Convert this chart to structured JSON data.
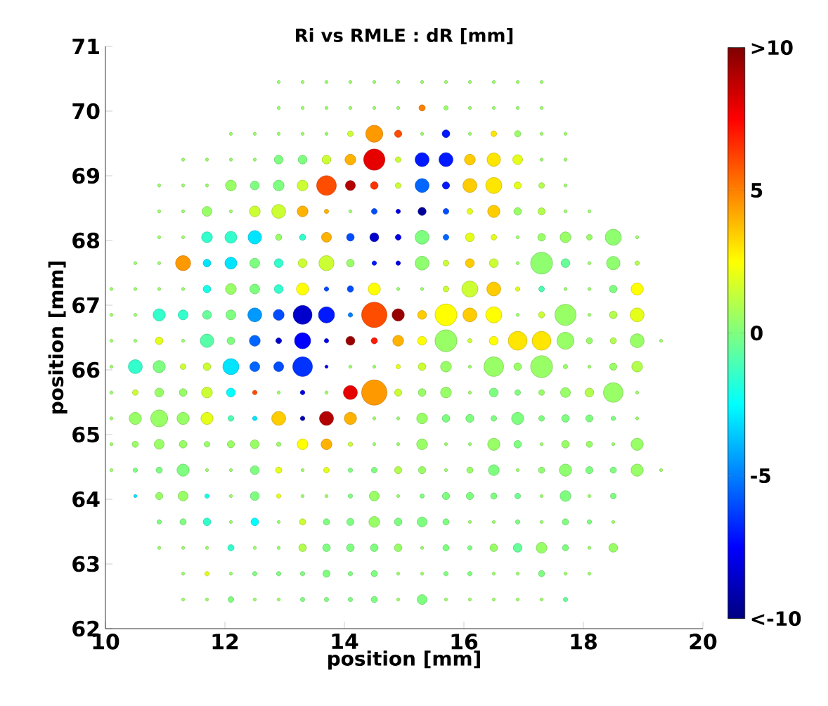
{
  "chart_data": {
    "type": "bubble",
    "title": "Ri vs RMLE : dR [mm]",
    "xlabel": "position [mm]",
    "ylabel": "position [mm]",
    "xlim": [
      10,
      20
    ],
    "xticks": [
      10,
      12,
      14,
      16,
      18,
      20
    ],
    "ylim": [
      62,
      71
    ],
    "yticks": [
      62,
      63,
      64,
      65,
      66,
      67,
      68,
      69,
      70,
      71
    ],
    "clim": [
      -10,
      10
    ],
    "cticks": [
      {
        "value": -10,
        "label": "<-10"
      },
      -5,
      0,
      5,
      {
        "value": 10,
        "label": ">10"
      }
    ],
    "x": [
      12.9,
      13.3,
      13.7,
      14.1,
      14.5,
      14.9,
      15.3,
      15.7,
      16.1,
      16.5,
      16.9,
      17.3,
      12.9,
      13.3,
      13.7,
      14.1,
      14.5,
      14.9,
      15.3,
      15.7,
      16.1,
      16.5,
      16.9,
      17.3,
      12.1,
      12.5,
      12.9,
      13.3,
      13.7,
      14.1,
      14.5,
      14.9,
      15.3,
      15.7,
      16.1,
      16.5,
      16.9,
      17.3,
      17.7,
      11.3,
      11.7,
      12.1,
      12.5,
      12.9,
      13.3,
      13.7,
      14.1,
      14.5,
      14.9,
      15.3,
      15.7,
      16.1,
      16.5,
      16.9,
      17.3,
      17.7,
      10.9,
      11.3,
      11.7,
      12.1,
      12.5,
      12.9,
      13.3,
      13.7,
      14.1,
      14.5,
      14.9,
      15.3,
      15.7,
      16.1,
      16.5,
      16.9,
      17.3,
      17.7,
      10.9,
      11.3,
      11.7,
      12.1,
      12.5,
      12.9,
      13.3,
      13.7,
      14.1,
      14.5,
      14.9,
      15.3,
      15.7,
      16.1,
      16.5,
      16.9,
      17.3,
      17.7,
      18.1,
      10.9,
      11.3,
      11.7,
      12.1,
      12.5,
      12.9,
      13.3,
      13.7,
      14.1,
      14.5,
      14.9,
      15.3,
      15.7,
      16.1,
      16.5,
      16.9,
      17.3,
      17.7,
      18.1,
      18.5,
      18.9,
      10.5,
      10.9,
      11.3,
      11.7,
      12.1,
      12.5,
      12.9,
      13.3,
      13.7,
      14.1,
      14.5,
      14.9,
      15.3,
      15.7,
      16.1,
      16.5,
      16.9,
      17.3,
      17.7,
      18.1,
      18.5,
      18.9,
      10.1,
      10.5,
      10.9,
      11.3,
      11.7,
      12.1,
      12.5,
      12.9,
      13.3,
      13.7,
      14.1,
      14.5,
      14.9,
      15.3,
      15.7,
      16.1,
      16.5,
      16.9,
      17.3,
      17.7,
      18.1,
      18.5,
      18.9,
      10.1,
      10.5,
      10.9,
      11.3,
      11.7,
      12.1,
      12.5,
      12.9,
      13.3,
      13.7,
      14.1,
      14.5,
      14.9,
      15.3,
      15.7,
      16.1,
      16.5,
      16.9,
      17.3,
      17.7,
      18.1,
      18.5,
      18.9,
      10.1,
      10.5,
      10.9,
      11.3,
      11.7,
      12.1,
      12.5,
      12.9,
      13.3,
      13.7,
      14.1,
      14.5,
      14.9,
      15.3,
      15.7,
      16.1,
      16.5,
      16.9,
      17.3,
      17.7,
      18.1,
      18.5,
      18.9,
      19.3,
      10.1,
      10.5,
      10.9,
      11.3,
      11.7,
      12.1,
      12.5,
      12.9,
      13.3,
      13.7,
      14.1,
      14.5,
      14.9,
      15.3,
      15.7,
      16.1,
      16.5,
      16.9,
      17.3,
      17.7,
      18.1,
      18.5,
      18.9,
      10.1,
      10.5,
      10.9,
      11.3,
      11.7,
      12.1,
      12.5,
      12.9,
      13.3,
      13.7,
      14.1,
      14.5,
      14.9,
      15.3,
      15.7,
      16.1,
      16.5,
      16.9,
      17.3,
      17.7,
      18.1,
      18.5,
      18.9,
      10.1,
      10.5,
      10.9,
      11.3,
      11.7,
      12.1,
      12.5,
      12.9,
      13.3,
      13.7,
      14.1,
      14.5,
      14.9,
      15.3,
      15.7,
      16.1,
      16.5,
      16.9,
      17.3,
      17.7,
      18.1,
      18.5,
      18.9,
      10.1,
      10.5,
      10.9,
      11.3,
      11.7,
      12.1,
      12.5,
      12.9,
      13.3,
      13.7,
      14.1,
      14.5,
      14.9,
      15.3,
      15.7,
      16.1,
      16.5,
      16.9,
      17.3,
      17.7,
      18.1,
      18.5,
      18.9,
      10.1,
      10.5,
      10.9,
      11.3,
      11.7,
      12.1,
      12.5,
      12.9,
      13.3,
      13.7,
      14.1,
      14.5,
      14.9,
      15.3,
      15.7,
      16.1,
      16.5,
      16.9,
      17.3,
      17.7,
      18.1,
      18.5,
      18.9,
      19.3,
      10.5,
      10.9,
      11.3,
      11.7,
      12.1,
      12.5,
      12.9,
      13.3,
      13.7,
      14.1,
      14.5,
      14.9,
      15.3,
      15.7,
      16.1,
      16.5,
      16.9,
      17.3,
      17.7,
      18.1,
      18.5,
      10.9,
      11.3,
      11.7,
      12.1,
      12.5,
      12.9,
      13.3,
      13.7,
      14.1,
      14.5,
      14.9,
      15.3,
      15.7,
      16.1,
      16.5,
      16.9,
      17.3,
      17.7,
      18.1,
      18.5,
      10.9,
      11.3,
      11.7,
      12.1,
      12.5,
      12.9,
      13.3,
      13.7,
      14.1,
      14.5,
      14.9,
      15.3,
      15.7,
      16.1,
      16.5,
      16.9,
      17.3,
      17.7,
      18.1,
      18.5,
      11.3,
      11.7,
      12.1,
      12.5,
      12.9,
      13.3,
      13.7,
      14.1,
      14.5,
      14.9,
      15.3,
      15.7,
      16.1,
      16.5,
      16.9,
      17.3,
      17.7,
      18.1,
      11.3,
      11.7,
      12.1,
      12.5,
      12.9,
      13.3,
      13.7,
      14.1,
      14.5,
      14.9,
      15.3,
      15.7,
      16.1,
      16.5,
      16.9,
      17.3,
      17.7
    ],
    "values": [
      70.45,
      70.45,
      70.45,
      70.45,
      70.45,
      70.45,
      70.45,
      70.45,
      70.45,
      70.45,
      70.45,
      70.45,
      70.05,
      70.05,
      70.05,
      70.05,
      70.05,
      70.05,
      70.05,
      70.05,
      70.05,
      70.05,
      70.05,
      70.05,
      69.65,
      69.65,
      69.65,
      69.65,
      69.65,
      69.65,
      69.65,
      69.65,
      69.65,
      69.65,
      69.65,
      69.65,
      69.65,
      69.65,
      69.65,
      69.25,
      69.25,
      69.25,
      69.25,
      69.25,
      69.25,
      69.25,
      69.25,
      69.25,
      69.25,
      69.25,
      69.25,
      69.25,
      69.25,
      69.25,
      69.25,
      69.25,
      68.85,
      68.85,
      68.85,
      68.85,
      68.85,
      68.85,
      68.85,
      68.85,
      68.85,
      68.85,
      68.85,
      68.85,
      68.85,
      68.85,
      68.85,
      68.85,
      68.85,
      68.85,
      68.45,
      68.45,
      68.45,
      68.45,
      68.45,
      68.45,
      68.45,
      68.45,
      68.45,
      68.45,
      68.45,
      68.45,
      68.45,
      68.45,
      68.45,
      68.45,
      68.45,
      68.45,
      68.45,
      68.05,
      68.05,
      68.05,
      68.05,
      68.05,
      68.05,
      68.05,
      68.05,
      68.05,
      68.05,
      68.05,
      68.05,
      68.05,
      68.05,
      68.05,
      68.05,
      68.05,
      68.05,
      68.05,
      68.05,
      68.05,
      67.65,
      67.65,
      67.65,
      67.65,
      67.65,
      67.65,
      67.65,
      67.65,
      67.65,
      67.65,
      67.65,
      67.65,
      67.65,
      67.65,
      67.65,
      67.65,
      67.65,
      67.65,
      67.65,
      67.65,
      67.65,
      67.65,
      67.25,
      67.25,
      67.25,
      67.25,
      67.25,
      67.25,
      67.25,
      67.25,
      67.25,
      67.25,
      67.25,
      67.25,
      67.25,
      67.25,
      67.25,
      67.25,
      67.25,
      67.25,
      67.25,
      67.25,
      67.25,
      67.25,
      67.25,
      66.85,
      66.85,
      66.85,
      66.85,
      66.85,
      66.85,
      66.85,
      66.85,
      66.85,
      66.85,
      66.85,
      66.85,
      66.85,
      66.85,
      66.85,
      66.85,
      66.85,
      66.85,
      66.85,
      66.85,
      66.85,
      66.85,
      66.85,
      66.45,
      66.45,
      66.45,
      66.45,
      66.45,
      66.45,
      66.45,
      66.45,
      66.45,
      66.45,
      66.45,
      66.45,
      66.45,
      66.45,
      66.45,
      66.45,
      66.45,
      66.45,
      66.45,
      66.45,
      66.45,
      66.45,
      66.45,
      66.45,
      66.05,
      66.05,
      66.05,
      66.05,
      66.05,
      66.05,
      66.05,
      66.05,
      66.05,
      66.05,
      66.05,
      66.05,
      66.05,
      66.05,
      66.05,
      66.05,
      66.05,
      66.05,
      66.05,
      66.05,
      66.05,
      66.05,
      66.05,
      65.65,
      65.65,
      65.65,
      65.65,
      65.65,
      65.65,
      65.65,
      65.65,
      65.65,
      65.65,
      65.65,
      65.65,
      65.65,
      65.65,
      65.65,
      65.65,
      65.65,
      65.65,
      65.65,
      65.65,
      65.65,
      65.65,
      65.65,
      65.25,
      65.25,
      65.25,
      65.25,
      65.25,
      65.25,
      65.25,
      65.25,
      65.25,
      65.25,
      65.25,
      65.25,
      65.25,
      65.25,
      65.25,
      65.25,
      65.25,
      65.25,
      65.25,
      65.25,
      65.25,
      65.25,
      65.25,
      64.85,
      64.85,
      64.85,
      64.85,
      64.85,
      64.85,
      64.85,
      64.85,
      64.85,
      64.85,
      64.85,
      64.85,
      64.85,
      64.85,
      64.85,
      64.85,
      64.85,
      64.85,
      64.85,
      64.85,
      64.85,
      64.85,
      64.85,
      64.45,
      64.45,
      64.45,
      64.45,
      64.45,
      64.45,
      64.45,
      64.45,
      64.45,
      64.45,
      64.45,
      64.45,
      64.45,
      64.45,
      64.45,
      64.45,
      64.45,
      64.45,
      64.45,
      64.45,
      64.45,
      64.45,
      64.45,
      64.45,
      64.05,
      64.05,
      64.05,
      64.05,
      64.05,
      64.05,
      64.05,
      64.05,
      64.05,
      64.05,
      64.05,
      64.05,
      64.05,
      64.05,
      64.05,
      64.05,
      64.05,
      64.05,
      64.05,
      64.05,
      64.05,
      63.65,
      63.65,
      63.65,
      63.65,
      63.65,
      63.65,
      63.65,
      63.65,
      63.65,
      63.65,
      63.65,
      63.65,
      63.65,
      63.65,
      63.65,
      63.65,
      63.65,
      63.65,
      63.65,
      63.65,
      63.25,
      63.25,
      63.25,
      63.25,
      63.25,
      63.25,
      63.25,
      63.25,
      63.25,
      63.25,
      63.25,
      63.25,
      63.25,
      63.25,
      63.25,
      63.25,
      63.25,
      63.25,
      63.25,
      63.25,
      62.85,
      62.85,
      62.85,
      62.85,
      62.85,
      62.85,
      62.85,
      62.85,
      62.85,
      62.85,
      62.85,
      62.85,
      62.85,
      62.85,
      62.85,
      62.85,
      62.85,
      62.85,
      62.45,
      62.45,
      62.45,
      62.45,
      62.45,
      62.45,
      62.45,
      62.45,
      62.45,
      62.45,
      62.45,
      62.45,
      62.45,
      62.45,
      62.45,
      62.45,
      62.45
    ],
    "cvalues": [
      0.5,
      0.5,
      0.5,
      0.5,
      0.5,
      0.5,
      0.5,
      0.5,
      0.5,
      0.5,
      0.5,
      0.5,
      0.5,
      0.5,
      0.5,
      0.5,
      0.5,
      0.5,
      5,
      0.5,
      0.5,
      0.5,
      0.5,
      0.5,
      0.5,
      0.5,
      0.5,
      0.5,
      0.5,
      1.5,
      4.5,
      6,
      0.5,
      -7,
      0.5,
      3,
      0.5,
      0.5,
      0.5,
      0.5,
      0.5,
      0.5,
      0.5,
      0,
      0,
      1.5,
      4,
      8,
      1.5,
      -7,
      -7,
      3.5,
      3,
      2,
      0.5,
      0.5,
      0.5,
      0.5,
      0.5,
      0.5,
      0,
      0,
      1.5,
      6,
      9,
      6.5,
      1.5,
      -5.5,
      -7,
      3.5,
      3,
      2,
      1,
      0.5,
      0.5,
      0.5,
      0.5,
      0.5,
      1.5,
      1.5,
      4,
      4,
      0.5,
      -6,
      -8,
      -9.5,
      -6,
      2,
      3.5,
      0.5,
      1,
      0.5,
      0.5,
      0.5,
      0.5,
      -1.5,
      -1.5,
      -3,
      0.5,
      -1.5,
      4,
      -6,
      -8.5,
      -8,
      0,
      -5.5,
      2,
      2,
      0.5,
      0.5,
      0.5,
      0.5,
      0.3,
      0.5,
      0.5,
      0.5,
      4.5,
      -3,
      -3,
      0,
      -1.5,
      1.5,
      1.5,
      0.5,
      -7,
      -8,
      0.3,
      1.5,
      3.5,
      1.5,
      0.5,
      0.3,
      -0.5,
      0.5,
      0.3,
      1,
      0.5,
      0.5,
      0.5,
      0.5,
      -2,
      0.5,
      0,
      -1.5,
      2.5,
      -6,
      -6,
      2.5,
      0.5,
      0.5,
      1.5,
      1.5,
      3.5,
      2,
      -1,
      0.5,
      0.5,
      0,
      2.5,
      0.5,
      0.5,
      -1.5,
      -1.5,
      -0.5,
      0,
      -4.5,
      -6,
      -8.5,
      -7,
      -5,
      6,
      9.5,
      3.5,
      2.5,
      3.5,
      2.5,
      0.5,
      1.5,
      0.5,
      0.5,
      1,
      2,
      0.5,
      0.5,
      2,
      0.5,
      -0.8,
      0,
      -5.5,
      -8.5,
      -7.5,
      -8,
      9.5,
      7,
      4,
      2.5,
      0.5,
      1.5,
      2.5,
      3,
      3,
      0.5,
      0.5,
      1,
      0.5,
      0.5,
      0.5,
      -1.5,
      0,
      1.5,
      1.5,
      -3,
      -5.5,
      -6,
      -6.5,
      -8,
      0.5,
      0.5,
      2,
      1.5,
      0.5,
      0.5,
      0.5,
      0.5,
      0.5,
      0.5,
      0.5,
      0.5,
      1,
      0.5,
      1.5,
      0.5,
      0.5,
      1.5,
      -2.5,
      6,
      0.5,
      -8,
      0.5,
      8,
      4.5,
      1.5,
      0.5,
      0.5,
      0.5,
      0,
      0,
      0.5,
      0.5,
      1,
      0.5,
      0.5,
      0.5,
      0.5,
      0.5,
      0.5,
      2,
      -1,
      -3,
      3.5,
      -9,
      9,
      4,
      0.5,
      0.5,
      0.5,
      0,
      0,
      0,
      0,
      0,
      0,
      0,
      0,
      0.5,
      0.5,
      0.5,
      0.5,
      0.5,
      0.5,
      0.5,
      0.5,
      0.5,
      2.5,
      4,
      1.5,
      0.5,
      0.5,
      0.5,
      0.5,
      0.5,
      0.5,
      0,
      0.5,
      0.5,
      0.5,
      0.5,
      0.5,
      0.5,
      0,
      0,
      0,
      0.5,
      0.5,
      0,
      2,
      0.5,
      2,
      0,
      0,
      1,
      0.5,
      0.5,
      0.5,
      0,
      0.5,
      0.3,
      0.3,
      0,
      0,
      0.5,
      0.5,
      -3,
      0.5,
      0.5,
      -2,
      0.5,
      0,
      2,
      0.5,
      0.5,
      0,
      0.5,
      0.5,
      0,
      0,
      0,
      0,
      -0.3,
      0.5,
      0,
      0.5,
      0,
      0,
      0,
      -1.5,
      0.5,
      -2.5,
      0.5,
      1.5,
      0,
      0,
      0.5,
      0,
      0,
      0,
      0.5,
      0.5,
      0,
      0.5,
      0,
      0,
      0.5,
      0.5,
      0.5,
      0.5,
      -1.5,
      0.5,
      0.5,
      1,
      0,
      0,
      0,
      0.5,
      0.5,
      0,
      0,
      0.5,
      -0.5,
      0.5,
      0,
      0.5,
      0.5,
      0.5,
      2,
      0.5,
      0,
      0,
      0,
      0,
      0,
      0,
      0.5,
      0.5,
      0,
      0,
      0.5,
      0.5,
      0,
      0.5,
      0.5,
      0.5,
      0.5,
      0,
      0.5,
      0.5,
      0,
      0,
      0,
      0,
      0.5,
      0,
      0.5,
      0.5,
      0.5,
      0.5,
      0.5,
      -0.5
    ],
    "sizes": [
      0.015,
      0.015,
      0.015,
      0.015,
      0.015,
      0.015,
      0.015,
      0.015,
      0.015,
      0.015,
      0.015,
      0.015,
      0.015,
      0.015,
      0.015,
      0.015,
      0.015,
      0.015,
      0.06,
      0.03,
      0.015,
      0.015,
      0.015,
      0.015,
      0.015,
      0.015,
      0.015,
      0.015,
      0.015,
      0.05,
      0.45,
      0.08,
      0.015,
      0.09,
      0.015,
      0.05,
      0.06,
      0.015,
      0.015,
      0.015,
      0.015,
      0.015,
      0.015,
      0.12,
      0.12,
      0.12,
      0.18,
      0.7,
      0.05,
      0.3,
      0.3,
      0.18,
      0.28,
      0.15,
      0.015,
      0.015,
      0.015,
      0.015,
      0.015,
      0.18,
      0.12,
      0.18,
      0.18,
      0.6,
      0.15,
      0.09,
      0.05,
      0.3,
      0.08,
      0.3,
      0.4,
      0.08,
      0.05,
      0.015,
      0.015,
      0.015,
      0.15,
      0.015,
      0.18,
      0.3,
      0.18,
      0.03,
      0.015,
      0.05,
      0.03,
      0.1,
      0.05,
      0.05,
      0.23,
      0.09,
      0.08,
      0.015,
      0.015,
      0.015,
      0.015,
      0.18,
      0.22,
      0.28,
      0.06,
      0.06,
      0.15,
      0.09,
      0.12,
      0.05,
      0.3,
      0.05,
      0.12,
      0.05,
      0.015,
      0.09,
      0.18,
      0.05,
      0.4,
      0.015,
      0.015,
      0.015,
      0.35,
      0.09,
      0.22,
      0.15,
      0.12,
      0.12,
      0.35,
      0.09,
      0.03,
      0.03,
      0.3,
      0.05,
      0.12,
      0.12,
      0.015,
      0.75,
      0.12,
      0.015,
      0.28,
      0.03,
      0.015,
      0.015,
      0.015,
      0.015,
      0.09,
      0.18,
      0.15,
      0.12,
      0.23,
      0.03,
      0.06,
      0.23,
      0.015,
      0.015,
      0.05,
      0.4,
      0.3,
      0.03,
      0.05,
      0.015,
      0.015,
      0.09,
      0.23,
      0.015,
      0.015,
      0.23,
      0.15,
      0.12,
      0.15,
      0.3,
      0.18,
      0.55,
      0.4,
      0.03,
      1,
      0.23,
      0.12,
      0.75,
      0.3,
      0.4,
      0.015,
      0.06,
      0.7,
      0.015,
      0.09,
      0.3,
      0.015,
      0.015,
      0.09,
      0.015,
      0.28,
      0.09,
      0.18,
      0.05,
      0.4,
      0.03,
      0.12,
      0.06,
      0.18,
      0.12,
      0.75,
      0.03,
      0.12,
      0.55,
      0.55,
      0.45,
      0.06,
      0.06,
      0.3,
      0.015,
      0.015,
      0.3,
      0.23,
      0.05,
      0.09,
      0.4,
      0.15,
      0.15,
      0.6,
      0.015,
      0.015,
      0.015,
      0.03,
      0.09,
      0.18,
      0.015,
      0.6,
      0.09,
      0.75,
      0.03,
      0.015,
      0.08,
      0.18,
      0.015,
      0.05,
      0.12,
      0.09,
      0.18,
      0.12,
      0.03,
      0.015,
      0.03,
      0.015,
      0.3,
      1,
      0.08,
      0.09,
      0.18,
      0.015,
      0.12,
      0.05,
      0.05,
      0.15,
      0.12,
      0.6,
      0.015,
      0.015,
      0.23,
      0.45,
      0.23,
      0.23,
      0.05,
      0.03,
      0.3,
      0.03,
      0.3,
      0.23,
      0.015,
      0.015,
      0.18,
      0.09,
      0.1,
      0.05,
      0.23,
      0.05,
      0.09,
      0.08,
      0.03,
      0.015,
      0.015,
      0.06,
      0.15,
      0.09,
      0.05,
      0.08,
      0.12,
      0.03,
      0.18,
      0.18,
      0.03,
      0.015,
      0.015,
      0.18,
      0.015,
      0.015,
      0.23,
      0.09,
      0.015,
      0.09,
      0.06,
      0.015,
      0.23,
      0.015,
      0.03,
      0.06,
      0.23,
      0.015,
      0.015,
      0.12,
      0.06,
      0.015,
      0.05,
      0.03,
      0.05,
      0.08,
      0.08,
      0.015,
      0.06,
      0.18,
      0.015,
      0.06,
      0.23,
      0.08,
      0.06,
      0.23,
      0.015,
      0.015,
      0.08,
      0.15,
      0.03,
      0.015,
      0.12,
      0.03,
      0.015,
      0.015,
      0.03,
      0.15,
      0.015,
      0.03,
      0.08,
      0.08,
      0.06,
      0.05,
      0.015,
      0.18,
      0.015,
      0.05,
      0.03,
      0.06,
      0.09,
      0.015,
      0.09,
      0.015,
      0.06,
      0.06,
      0.08,
      0.18,
      0.09,
      0.15,
      0.06,
      0.015,
      0.015,
      0.03,
      0.015,
      0.06,
      0.03,
      0.015,
      0.015,
      0.015,
      0.015,
      0.06,
      0.015,
      0.015,
      0.09,
      0.09,
      0.09,
      0.09,
      0.09,
      0.015,
      0.06,
      0.03,
      0.09,
      0.12,
      0.18,
      0.06,
      0.015,
      0.12,
      0.015,
      0.03,
      0.015,
      0.03,
      0.03,
      0.03,
      0.08,
      0.03,
      0.06,
      0.015,
      0.015,
      0.03,
      0.03,
      0.015,
      0.015,
      0.06,
      0.015,
      0.015,
      0.015,
      0.015,
      0.05,
      0.015,
      0.015,
      0.03,
      0.03,
      0.03,
      0.06,
      0.015,
      0.15,
      0.015,
      0.015,
      0.015,
      0.015,
      0.015,
      0.03
    ]
  }
}
